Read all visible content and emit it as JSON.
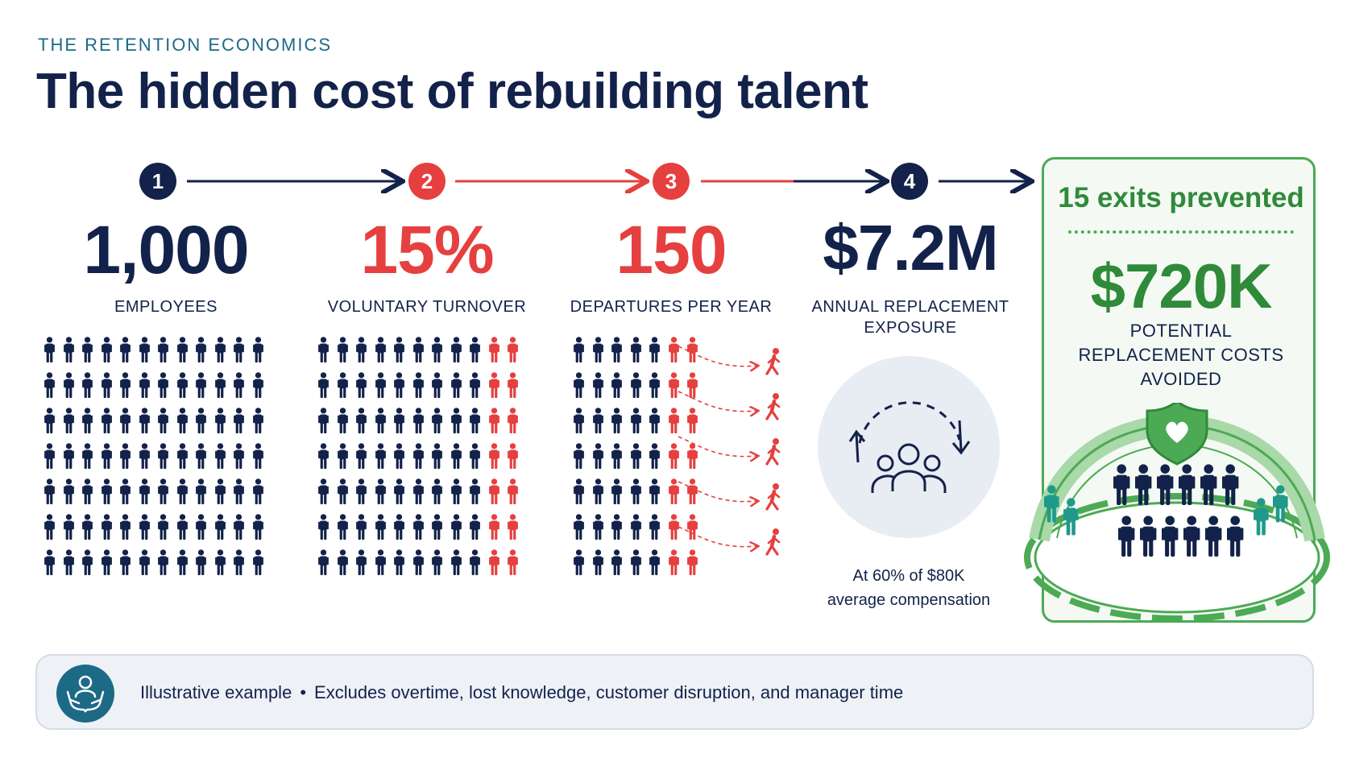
{
  "eyebrow": "THE RETENTION ECONOMICS",
  "title": "The hidden cost of rebuilding talent",
  "steps": [
    {
      "number": "1",
      "value": "1,000",
      "caption": "EMPLOYEES"
    },
    {
      "number": "2",
      "value": "15%",
      "caption": "VOLUNTARY TURNOVER"
    },
    {
      "number": "3",
      "value": "150",
      "caption": "DEPARTURES PER YEAR"
    },
    {
      "number": "4",
      "value": "$7.2M",
      "caption_line1": "ANNUAL REPLACEMENT",
      "caption_line2": "EXPOSURE",
      "note_line1": "At 60% of $80K",
      "note_line2": "average compensation"
    }
  ],
  "panel": {
    "title": "15 exits prevented",
    "value": "$720K",
    "caption_line1": "POTENTIAL",
    "caption_line2": "REPLACEMENT COSTS",
    "caption_line3": "AVOIDED"
  },
  "footer": {
    "label": "Illustrative example",
    "separator": "•",
    "text": "Excludes overtime, lost knowledge, customer disruption, and manager time"
  },
  "colors": {
    "navy": "#13224a",
    "red": "#e5403f",
    "green": "#2f8a3a",
    "teal": "#1f9a8a",
    "eyebrow": "#1d6a86"
  },
  "icons": [
    "person-icon",
    "walking-person-icon",
    "cycle-arrows-icon",
    "group-icon",
    "shield-heart-icon",
    "hands-care-icon"
  ]
}
